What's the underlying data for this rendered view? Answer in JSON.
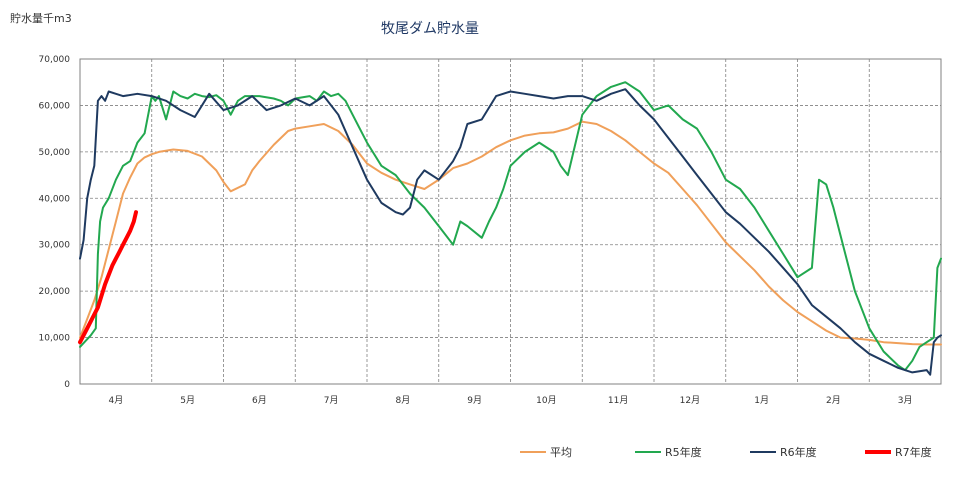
{
  "header": {
    "unit": "貯水量千m3",
    "title": "牧尾ダム貯水量"
  },
  "chart_data": {
    "type": "line",
    "title": "牧尾ダム貯水量",
    "ylabel": "貯水量千m3",
    "xlabel": "",
    "ylim": [
      0,
      70000
    ],
    "yticks": [
      "0",
      "10,000",
      "20,000",
      "30,000",
      "40,000",
      "50,000",
      "60,000",
      "70,000"
    ],
    "ytick_values": [
      0,
      10000,
      20000,
      30000,
      40000,
      50000,
      60000,
      70000
    ],
    "months": [
      "4月",
      "5月",
      "6月",
      "7月",
      "8月",
      "9月",
      "10月",
      "11月",
      "12月",
      "1月",
      "2月",
      "3月"
    ],
    "xlim": [
      0,
      12
    ],
    "grid": true,
    "legend_position": "bottom-right",
    "series": [
      {
        "name": "平均",
        "color": "#f0a05a",
        "width": 2,
        "x": [
          0,
          0.1,
          0.2,
          0.3,
          0.4,
          0.5,
          0.6,
          0.7,
          0.8,
          0.9,
          1.0,
          1.1,
          1.3,
          1.5,
          1.7,
          1.9,
          2.0,
          2.1,
          2.3,
          2.4,
          2.5,
          2.7,
          2.9,
          3.0,
          3.2,
          3.4,
          3.6,
          3.8,
          4.0,
          4.2,
          4.4,
          4.6,
          4.8,
          5.0,
          5.2,
          5.4,
          5.6,
          5.8,
          6.0,
          6.2,
          6.4,
          6.6,
          6.8,
          7.0,
          7.2,
          7.4,
          7.6,
          7.8,
          8.0,
          8.2,
          8.4,
          8.6,
          8.8,
          9.0,
          9.2,
          9.4,
          9.6,
          9.8,
          10.0,
          10.2,
          10.4,
          10.6,
          10.8,
          11.0,
          11.2,
          11.4,
          11.6,
          11.8,
          12.0
        ],
        "values": [
          10000,
          14000,
          18000,
          23000,
          29000,
          35000,
          41000,
          44500,
          47500,
          48800,
          49500,
          50000,
          50500,
          50200,
          49000,
          46000,
          43500,
          41500,
          43000,
          46000,
          48000,
          51500,
          54500,
          55000,
          55500,
          56000,
          54500,
          51500,
          47500,
          45500,
          44000,
          43000,
          42000,
          44000,
          46500,
          47500,
          49000,
          51000,
          52500,
          53500,
          54000,
          54200,
          55000,
          56500,
          56000,
          54500,
          52500,
          50000,
          47500,
          45500,
          42000,
          38500,
          34500,
          30500,
          27500,
          24500,
          21000,
          18000,
          15500,
          13500,
          11500,
          10000,
          9800,
          9500,
          9000,
          8800,
          8600,
          8500,
          8500
        ]
      },
      {
        "name": "R5年度",
        "color": "#22a84f",
        "width": 2,
        "x": [
          0,
          0.15,
          0.22,
          0.25,
          0.28,
          0.32,
          0.4,
          0.5,
          0.6,
          0.7,
          0.8,
          0.9,
          1.0,
          1.05,
          1.1,
          1.2,
          1.3,
          1.35,
          1.4,
          1.5,
          1.6,
          1.7,
          1.8,
          1.9,
          2.0,
          2.1,
          2.2,
          2.3,
          2.5,
          2.7,
          2.8,
          2.9,
          3.0,
          3.2,
          3.3,
          3.4,
          3.5,
          3.6,
          3.7,
          3.8,
          4.0,
          4.2,
          4.4,
          4.6,
          4.8,
          5.0,
          5.2,
          5.3,
          5.4,
          5.6,
          5.7,
          5.8,
          5.9,
          6.0,
          6.2,
          6.4,
          6.6,
          6.7,
          6.8,
          7.0,
          7.2,
          7.4,
          7.6,
          7.8,
          8.0,
          8.2,
          8.4,
          8.6,
          8.8,
          9.0,
          9.2,
          9.4,
          9.6,
          9.8,
          10.0,
          10.2,
          10.3,
          10.4,
          10.5,
          10.6,
          10.7,
          10.8,
          11.0,
          11.2,
          11.4,
          11.5,
          11.6,
          11.7,
          11.8,
          11.9,
          11.95,
          12.0
        ],
        "values": [
          8000,
          10500,
          12000,
          28000,
          35000,
          38000,
          40000,
          44000,
          47000,
          48000,
          52000,
          54000,
          62000,
          61000,
          62000,
          57000,
          63000,
          62500,
          62000,
          61500,
          62500,
          62000,
          61800,
          62200,
          61000,
          58000,
          61000,
          62000,
          62000,
          61500,
          61000,
          60000,
          61500,
          62000,
          61000,
          63000,
          62000,
          62500,
          61000,
          58000,
          52000,
          47000,
          45000,
          41000,
          38000,
          34000,
          30000,
          35000,
          34000,
          31500,
          35000,
          38000,
          42000,
          47000,
          50000,
          52000,
          50000,
          47000,
          45000,
          58000,
          62000,
          64000,
          65000,
          63000,
          59000,
          60000,
          57000,
          55000,
          50000,
          44000,
          42000,
          38000,
          33000,
          28000,
          23000,
          25000,
          44000,
          43000,
          38000,
          32000,
          26000,
          20000,
          12000,
          7000,
          4000,
          3000,
          5000,
          8000,
          9000,
          10000,
          25000,
          27000
        ]
      },
      {
        "name": "R6年度",
        "color": "#1f3a60",
        "width": 2,
        "x": [
          0,
          0.05,
          0.1,
          0.15,
          0.2,
          0.25,
          0.3,
          0.35,
          0.4,
          0.5,
          0.6,
          0.8,
          1.0,
          1.2,
          1.4,
          1.6,
          1.8,
          2.0,
          2.2,
          2.4,
          2.6,
          2.8,
          3.0,
          3.2,
          3.4,
          3.6,
          3.8,
          4.0,
          4.2,
          4.4,
          4.5,
          4.6,
          4.7,
          4.8,
          5.0,
          5.2,
          5.3,
          5.4,
          5.6,
          5.8,
          6.0,
          6.2,
          6.4,
          6.6,
          6.8,
          7.0,
          7.2,
          7.4,
          7.6,
          7.8,
          8.0,
          8.2,
          8.4,
          8.6,
          8.8,
          9.0,
          9.2,
          9.4,
          9.6,
          9.8,
          10.0,
          10.2,
          10.4,
          10.6,
          10.8,
          11.0,
          11.2,
          11.4,
          11.6,
          11.8,
          11.85,
          11.9,
          11.95,
          12.0
        ],
        "values": [
          27000,
          31000,
          40000,
          44000,
          47000,
          61000,
          62000,
          61000,
          63000,
          62500,
          62000,
          62500,
          62000,
          61000,
          59000,
          57500,
          62500,
          59000,
          60000,
          62000,
          59000,
          60000,
          61500,
          60000,
          62000,
          58000,
          51000,
          44000,
          39000,
          37000,
          36500,
          38000,
          44000,
          46000,
          44000,
          48000,
          51000,
          56000,
          57000,
          62000,
          63000,
          62500,
          62000,
          61500,
          62000,
          62000,
          61000,
          62500,
          63500,
          60000,
          57000,
          53000,
          49000,
          45000,
          41000,
          37000,
          34500,
          31500,
          28500,
          25000,
          21500,
          17000,
          14500,
          12000,
          9000,
          6500,
          5000,
          3500,
          2500,
          3000,
          2000,
          9000,
          10000,
          10500
        ]
      },
      {
        "name": "R7年度",
        "color": "#ff0000",
        "width": 4,
        "x": [
          0,
          0.05,
          0.1,
          0.15,
          0.2,
          0.25,
          0.3,
          0.35,
          0.4,
          0.45,
          0.5,
          0.55,
          0.6,
          0.65,
          0.7,
          0.75,
          0.78
        ],
        "values": [
          9000,
          10500,
          12000,
          13500,
          15000,
          16500,
          19000,
          21500,
          23500,
          25500,
          27000,
          28500,
          30000,
          31500,
          33000,
          35000,
          37000
        ]
      }
    ]
  }
}
